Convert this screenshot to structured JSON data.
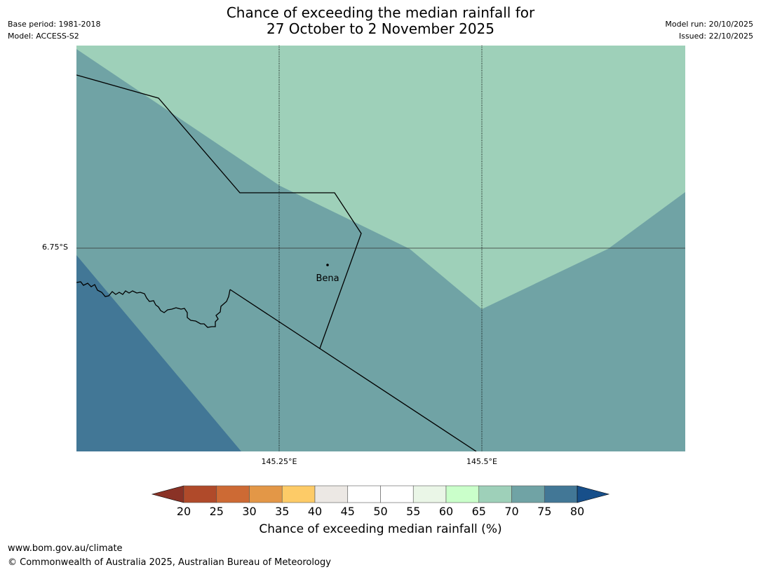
{
  "title": {
    "line1": "Chance of exceeding the median rainfall for",
    "line2": "27 October to 2 November 2025"
  },
  "meta_left": {
    "base_period": "Base period: 1981-2018",
    "model": "Model: ACCESS-S2"
  },
  "meta_right": {
    "model_run": "Model run: 20/10/2025",
    "issued": "Issued: 22/10/2025"
  },
  "map": {
    "place_label": "Bena",
    "lat_label": "6.75°S",
    "lon_labels": [
      "145.25°E",
      "145.5°E"
    ],
    "colors": {
      "class_65_70": "#9ed0b9",
      "class_70_75": "#70a3a5",
      "class_75_80": "#427796",
      "boundary": "#000000",
      "gridline": "#000000"
    }
  },
  "colorbar": {
    "label": "Chance of exceeding median rainfall (%)",
    "ticks": [
      "20",
      "25",
      "30",
      "35",
      "40",
      "45",
      "50",
      "55",
      "60",
      "65",
      "70",
      "75",
      "80"
    ],
    "under_color": "#8a3226",
    "over_color": "#174f8a",
    "colors": [
      "#b04a2a",
      "#cd6a34",
      "#e39747",
      "#fdcb67",
      "#ece8e4",
      "#ffffff",
      "#ffffff",
      "#eaf6e7",
      "#caffca",
      "#9ed0b9",
      "#70a3a5",
      "#427796"
    ]
  },
  "footer": {
    "url": "www.bom.gov.au/climate",
    "copyright": "© Commonwealth of Australia 2025, Australian Bureau of Meteorology"
  }
}
